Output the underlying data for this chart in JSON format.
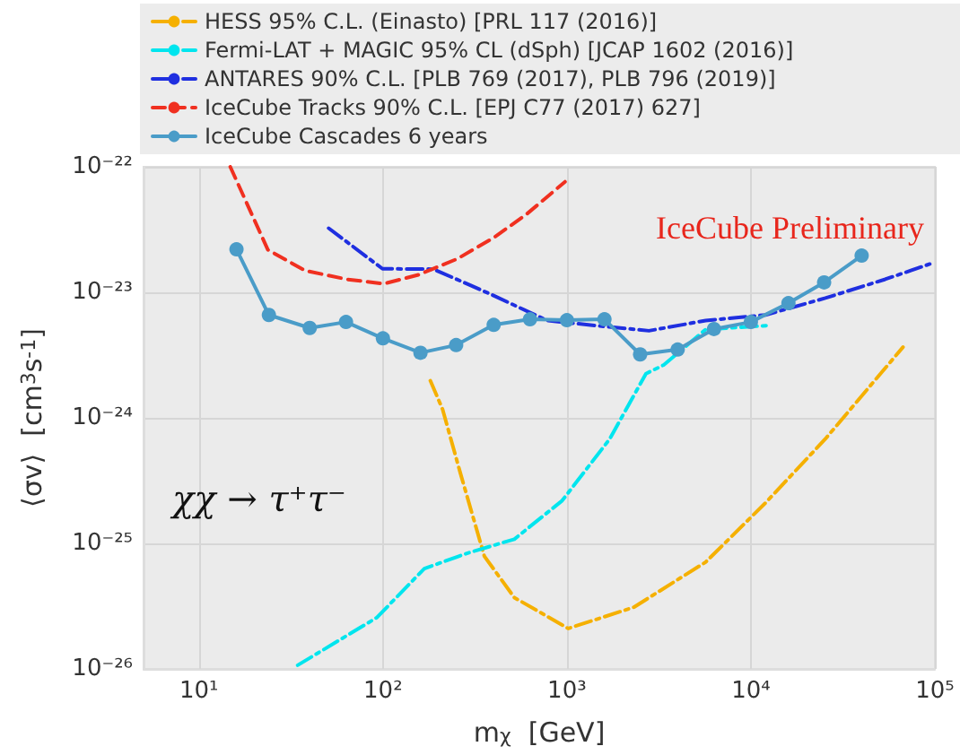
{
  "chart_data": {
    "type": "line",
    "xlabel": "m$_{χ}$  [GeV]",
    "ylabel": "⟨σv⟩  [cm$^{3}$s$^{-1}$]",
    "log": "xy",
    "grid": true,
    "legend": "top",
    "xlim": [
      5,
      100000
    ],
    "xticks": [
      {
        "value": 10,
        "label": "10¹"
      },
      {
        "value": 100,
        "label": "10²"
      },
      {
        "value": 1000,
        "label": "10³"
      },
      {
        "value": 10000,
        "label": "10⁴"
      },
      {
        "value": 100000,
        "label": "10⁵"
      }
    ],
    "ylim": [
      1e-26,
      1e-22
    ],
    "yticks": [
      {
        "value": 1e-26,
        "label": "10⁻²⁶"
      },
      {
        "value": 1e-25,
        "label": "10⁻²⁵"
      },
      {
        "value": 1e-24,
        "label": "10⁻²⁴"
      },
      {
        "value": 1e-23,
        "label": "10⁻²³"
      },
      {
        "value": 1e-22,
        "label": "10⁻²²"
      }
    ],
    "annotations": [
      "IceCube Preliminary",
      "χχ → τ⁺τ⁻"
    ],
    "series": [
      {
        "name": "HESS 95% C.L. (Einasto) [PRL 117 (2016)]",
        "color": "#f5b000",
        "line_style": "dashdot",
        "marker": "none",
        "x": [
          181,
          211,
          264,
          356,
          518,
          1016,
          2310,
          5680,
          12000,
          25400,
          67100
        ],
        "values": [
          1.98e-24,
          1.17e-24,
          3.6e-25,
          7.9e-26,
          3.7e-26,
          2.1e-26,
          3.1e-26,
          7.1e-26,
          2.1e-25,
          6.8e-25,
          3.66e-24
        ]
      },
      {
        "name": "Fermi-LAT + MAGIC 95% CL (dSph) [JCAP 1602 (2016)]",
        "color": "#00e5ee",
        "line_style": "dashdot",
        "marker": "none",
        "x": [
          34.4,
          92.5,
          168,
          284,
          518,
          942,
          1710,
          2690,
          3360,
          5680,
          12900
        ],
        "values": [
          1.07e-26,
          2.56e-26,
          6.3e-26,
          8.3e-26,
          1.08e-25,
          2.19e-25,
          6.8e-25,
          2.25e-24,
          2.64e-24,
          5.06e-24,
          5.46e-24
        ]
      },
      {
        "name": "ANTARES 90% C.L. [PLB 769 (2017), PLB 796 (2019)]",
        "color": "#1f2fe0",
        "line_style": "dashdot",
        "marker": "none",
        "x": [
          50.7,
          99.5,
          188,
          383,
          782,
          1590,
          2790,
          5680,
          12000,
          25400,
          53700,
          96000
        ],
        "values": [
          3.24e-23,
          1.54e-23,
          1.53e-23,
          9.7e-24,
          5.96e-24,
          5.35e-24,
          4.94e-24,
          5.96e-24,
          6.6e-24,
          9e-24,
          1.27e-23,
          1.7e-23
        ]
      },
      {
        "name": "IceCube Tracks 90% C.L. [EPJ C77 (2017) 627]",
        "color": "#f03020",
        "line_style": "dashed",
        "marker": "none",
        "x": [
          14.8,
          23.7,
          37.7,
          63.5,
          101,
          156,
          254,
          398,
          601,
          977
        ],
        "values": [
          1e-22,
          2.18e-23,
          1.49e-23,
          1.27e-23,
          1.17e-23,
          1.38e-23,
          1.85e-23,
          2.71e-23,
          4.17e-23,
          7.6e-23
        ]
      },
      {
        "name": "IceCube Cascades 6 years",
        "color": "#4a9cc8",
        "line_style": "solid",
        "marker": "circle",
        "x": [
          16,
          24,
          40,
          63,
          100,
          160,
          250,
          400,
          630,
          1000,
          1600,
          2500,
          4000,
          6300,
          10000,
          16000,
          25000,
          40000
        ],
        "values": [
          2.2e-23,
          6.6e-24,
          5.2e-24,
          5.8e-24,
          4.3e-24,
          3.3e-24,
          3.8e-24,
          5.5e-24,
          6.1e-24,
          6e-24,
          6.1e-24,
          3.2e-24,
          3.5e-24,
          5.1e-24,
          5.8e-24,
          8.2e-24,
          1.2e-23,
          1.96e-23
        ]
      }
    ]
  }
}
